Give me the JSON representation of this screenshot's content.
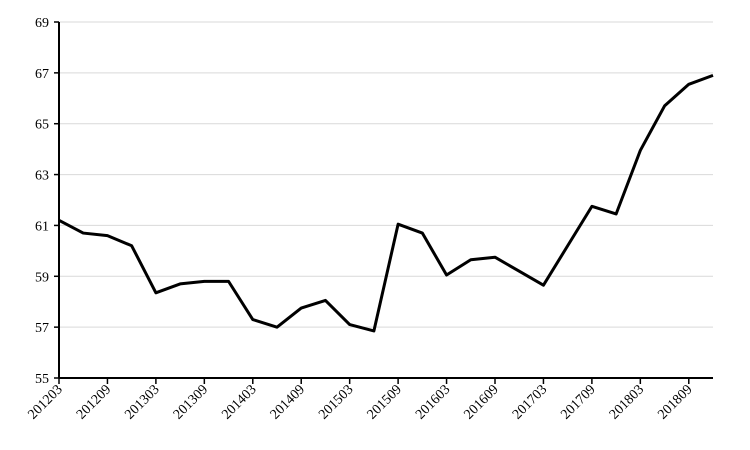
{
  "chart_data": {
    "type": "line",
    "categories": [
      "201203",
      null,
      "201209",
      null,
      "201303",
      null,
      "201309",
      null,
      "201403",
      null,
      "201409",
      null,
      "201503",
      null,
      "201509",
      null,
      "201603",
      null,
      "201609",
      null,
      "201703",
      null,
      "201709",
      null,
      "201803",
      null,
      "201809",
      null
    ],
    "values": [
      61.2,
      60.7,
      60.6,
      60.2,
      58.35,
      58.7,
      58.8,
      58.8,
      57.3,
      57.0,
      57.75,
      58.05,
      57.1,
      56.85,
      61.05,
      60.7,
      59.05,
      59.65,
      59.75,
      59.2,
      58.65,
      60.2,
      61.75,
      61.45,
      63.95,
      65.7,
      66.55,
      66.9
    ],
    "color": "#000000",
    "ylim": [
      55,
      69
    ],
    "yticks": [
      55,
      57,
      59,
      61,
      63,
      65,
      67,
      69
    ],
    "grid": true
  }
}
